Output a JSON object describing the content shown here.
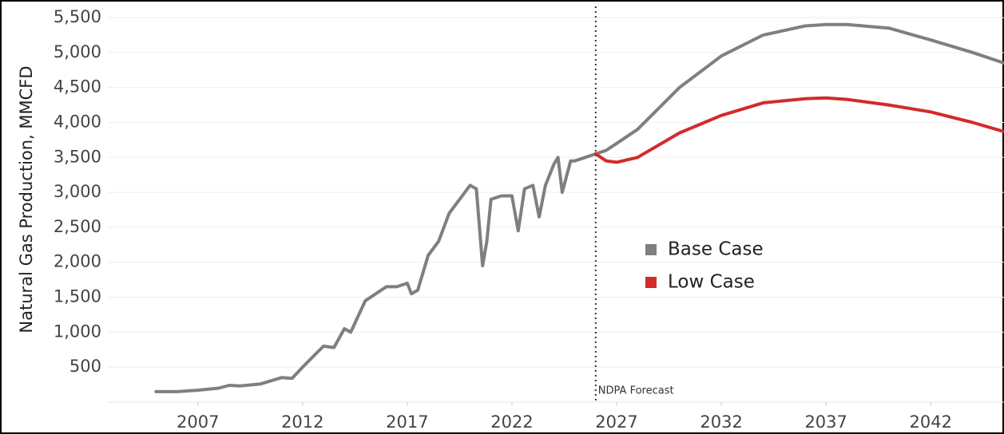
{
  "chart_data": {
    "type": "line",
    "y_label": "Natural Gas Production, MMCFD",
    "annotation": "NDPA Forecast",
    "forecast_x": 2026,
    "x": [
      2005,
      2006,
      2007,
      2008,
      2008.5,
      2009,
      2010,
      2011,
      2011.5,
      2012,
      2013,
      2013.5,
      2014,
      2014.3,
      2015,
      2016,
      2016.5,
      2017,
      2017.2,
      2017.5,
      2018,
      2018.5,
      2019,
      2019.5,
      2020,
      2020.3,
      2020.6,
      2020.8,
      2021,
      2021.5,
      2022,
      2022.3,
      2022.6,
      2023,
      2023.3,
      2023.6,
      2024,
      2024.2,
      2024.4,
      2024.8,
      2025,
      2025.5,
      2026,
      2026.5,
      2027,
      2028,
      2030,
      2032,
      2034,
      2036,
      2037,
      2038,
      2040,
      2042,
      2044,
      2045.5
    ],
    "series": [
      {
        "name": "Base Case",
        "color": "#7f7f7f",
        "values": [
          150,
          150,
          170,
          200,
          240,
          230,
          260,
          350,
          340,
          500,
          800,
          780,
          1050,
          1000,
          1450,
          1650,
          1650,
          1700,
          1550,
          1600,
          2100,
          2300,
          2700,
          2900,
          3100,
          3050,
          1950,
          2300,
          2900,
          2950,
          2950,
          2450,
          3050,
          3100,
          2650,
          3100,
          3400,
          3500,
          3000,
          3450,
          3450,
          3500,
          3550,
          3600,
          3700,
          3900,
          4500,
          4950,
          5250,
          5380,
          5400,
          5400,
          5350,
          5180,
          5000,
          4850
        ]
      },
      {
        "name": "Low Case",
        "color": "#d42a2a",
        "values": [
          null,
          null,
          null,
          null,
          null,
          null,
          null,
          null,
          null,
          null,
          null,
          null,
          null,
          null,
          null,
          null,
          null,
          null,
          null,
          null,
          null,
          null,
          null,
          null,
          null,
          null,
          null,
          null,
          null,
          null,
          null,
          null,
          null,
          null,
          null,
          null,
          null,
          null,
          null,
          null,
          null,
          null,
          3550,
          3450,
          3430,
          3500,
          3850,
          4100,
          4280,
          4340,
          4350,
          4330,
          4250,
          4150,
          4000,
          3870
        ]
      }
    ],
    "xlim": [
      2002.7,
      2045.5
    ],
    "xticks": [
      2007,
      2012,
      2017,
      2022,
      2027,
      2032,
      2037,
      2042
    ],
    "ylim": [
      0,
      5660
    ],
    "yticks": [
      500,
      {
        "value": 1000,
        "label": "1,000"
      },
      {
        "value": 1500,
        "label": "1,500"
      },
      {
        "value": 2000,
        "label": "2,000"
      },
      {
        "value": 2500,
        "label": "2,500"
      },
      {
        "value": 3000,
        "label": "3,000"
      },
      {
        "value": 3500,
        "label": "3,500"
      },
      {
        "value": 4000,
        "label": "4,000"
      },
      {
        "value": 4500,
        "label": "4,500"
      },
      {
        "value": 5000,
        "label": "5,000"
      },
      {
        "value": 5500,
        "label": "5,500"
      }
    ],
    "grid": true,
    "legend": "center"
  }
}
